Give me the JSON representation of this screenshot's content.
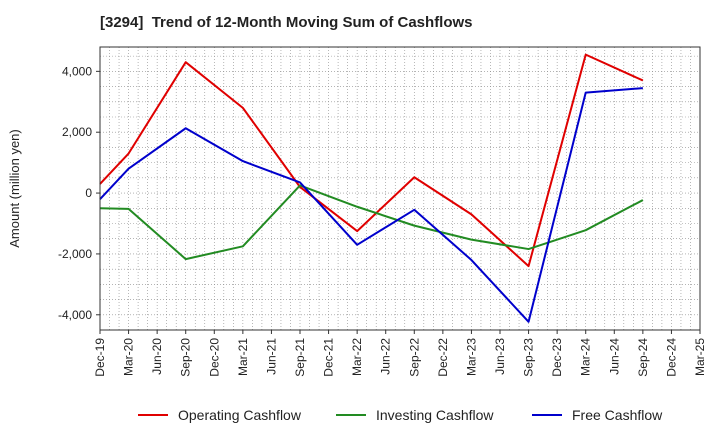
{
  "chart_data": {
    "type": "line",
    "title": "[3294]  Trend of 12-Month Moving Sum of Cashflows",
    "ylabel": "Amount (million yen)",
    "xlabel": "",
    "categories": [
      "Dec-19",
      "Mar-20",
      "Jun-20",
      "Sep-20",
      "Dec-20",
      "Mar-21",
      "Jun-21",
      "Sep-21",
      "Dec-21",
      "Mar-22",
      "Jun-22",
      "Sep-22",
      "Dec-22",
      "Mar-23",
      "Jun-23",
      "Sep-23",
      "Dec-23",
      "Mar-24",
      "Jun-24",
      "Sep-24",
      "Dec-24",
      "Mar-25"
    ],
    "ylim": [
      -4500,
      4800
    ],
    "yticks": [
      4000,
      2000,
      0,
      -2000,
      -4000
    ],
    "ytick_labels": [
      "4,000",
      "2,000",
      "0",
      "-2,000",
      "-4,000"
    ],
    "grid": true,
    "legend_position": "bottom",
    "series": [
      {
        "name": "Operating Cashflow",
        "color": "#e00000",
        "values": [
          300,
          1300,
          null,
          4300,
          null,
          2800,
          null,
          200,
          null,
          -1250,
          null,
          520,
          null,
          -700,
          null,
          -2400,
          null,
          4550,
          null,
          3700,
          null,
          null
        ]
      },
      {
        "name": "Investing Cashflow",
        "color": "#228b22",
        "values": [
          -500,
          -520,
          null,
          -2170,
          null,
          -1750,
          null,
          250,
          null,
          -450,
          null,
          -1070,
          null,
          -1530,
          null,
          -1840,
          null,
          -1220,
          null,
          -230,
          null,
          null
        ]
      },
      {
        "name": "Free Cashflow",
        "color": "#0000cc",
        "values": [
          -200,
          800,
          null,
          2130,
          null,
          1050,
          null,
          350,
          null,
          -1700,
          null,
          -550,
          null,
          -2200,
          null,
          -4230,
          null,
          3300,
          null,
          3450,
          null,
          null
        ]
      }
    ]
  }
}
